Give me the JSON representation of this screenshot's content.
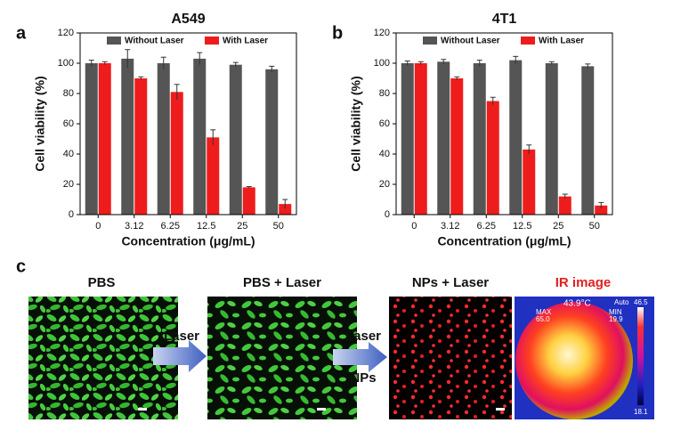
{
  "chart_data": [
    {
      "type": "bar",
      "panel": "a",
      "title": "A549",
      "xlabel": "Concentration (μg/mL)",
      "ylabel": "Cell viability (%)",
      "categories": [
        "0",
        "3.12",
        "6.25",
        "12.5",
        "25",
        "50"
      ],
      "series": [
        {
          "name": "Without Laser",
          "color": "#555555",
          "values": [
            100,
            103,
            100,
            103,
            99,
            96
          ],
          "errors": [
            2,
            6,
            4,
            4,
            1.5,
            2
          ]
        },
        {
          "name": "With Laser",
          "color": "#ee1c1c",
          "values": [
            100,
            90,
            81,
            51,
            18,
            7
          ],
          "errors": [
            1,
            1,
            5,
            5,
            0.5,
            3
          ]
        }
      ],
      "ylim": [
        0,
        120
      ],
      "yticks": [
        0,
        20,
        40,
        60,
        80,
        100,
        120
      ]
    },
    {
      "type": "bar",
      "panel": "b",
      "title": "4T1",
      "xlabel": "Concentration (μg/mL)",
      "ylabel": "Cell viability (%)",
      "categories": [
        "0",
        "3.12",
        "6.25",
        "12.5",
        "25",
        "50"
      ],
      "series": [
        {
          "name": "Without Laser",
          "color": "#555555",
          "values": [
            100,
            101,
            100,
            102,
            100,
            98
          ],
          "errors": [
            1.5,
            1.5,
            2,
            2.5,
            1,
            1.5
          ]
        },
        {
          "name": "With Laser",
          "color": "#ee1c1c",
          "values": [
            100,
            90,
            75,
            43,
            12,
            6
          ],
          "errors": [
            1,
            1,
            2.5,
            3,
            1.5,
            2
          ]
        }
      ],
      "ylim": [
        0,
        120
      ],
      "yticks": [
        0,
        20,
        40,
        60,
        80,
        100,
        120
      ]
    }
  ],
  "panel_c": {
    "label": "c",
    "titles": [
      "PBS",
      "PBS + Laser",
      "NPs + Laser",
      "IR image"
    ],
    "arrow1": "Laser",
    "arrow2_top": "Laser",
    "arrow2_bottom": "NPs",
    "ir_texts": {
      "temp": "43.9°C",
      "max": "MAX",
      "max_val": "65.0",
      "min": "MIN",
      "min_val": "19.9",
      "auto": "Auto",
      "scale_top": "46.5",
      "scale_bottom": "18.1"
    }
  }
}
